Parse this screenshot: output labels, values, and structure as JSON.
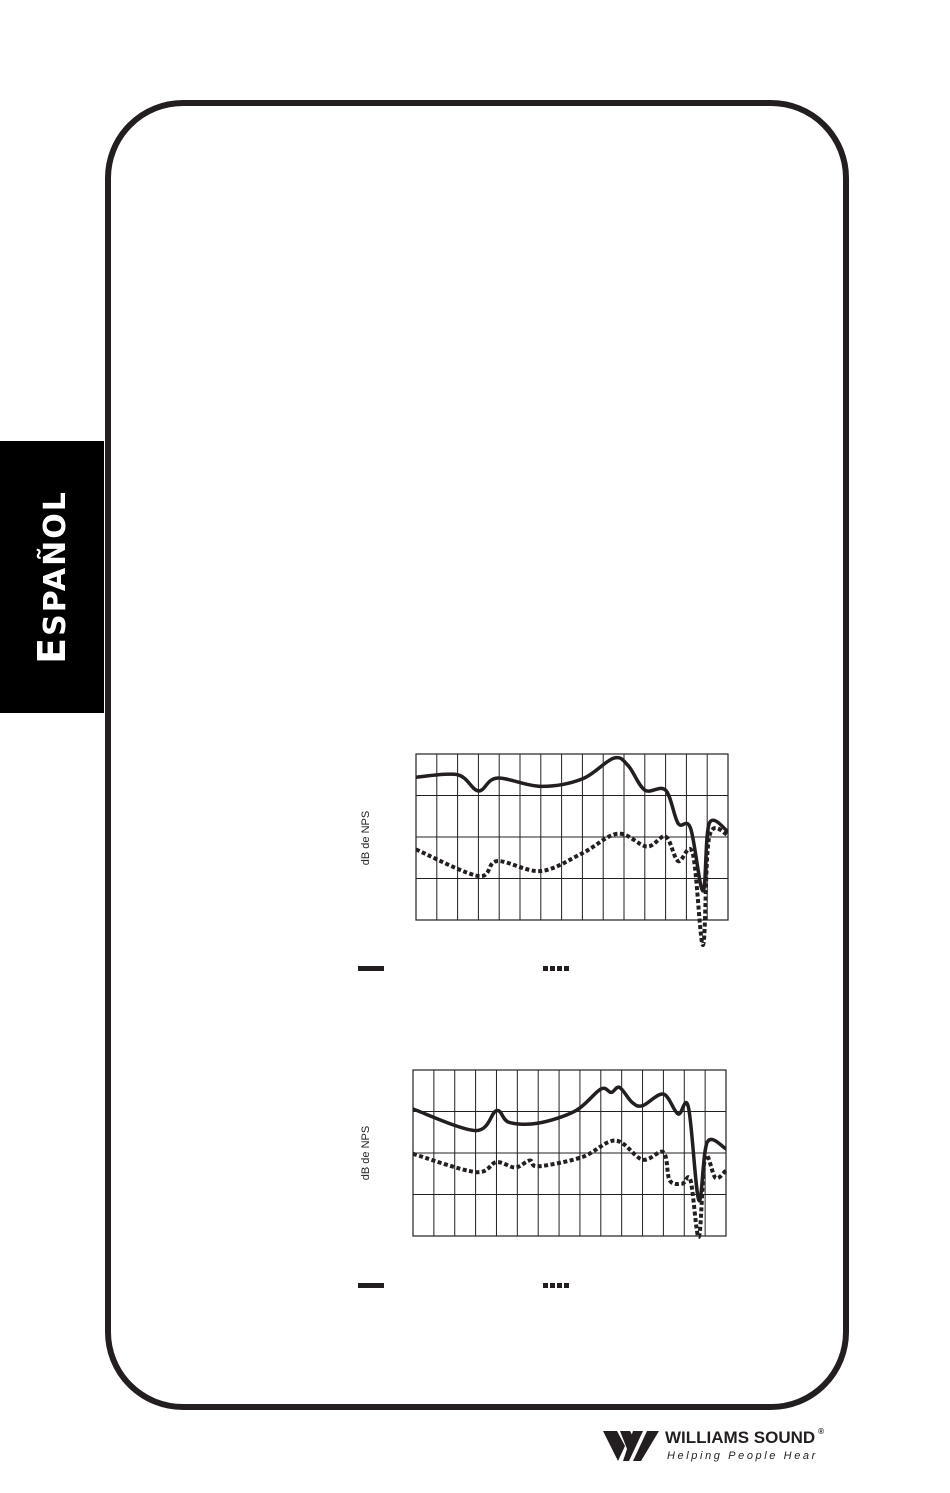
{
  "side_tab": {
    "label_first": "E",
    "label_rest": "SPAÑOL"
  },
  "logo": {
    "name": "WILLIAMS SOUND",
    "registered": "®",
    "tagline": "Helping People Hear"
  },
  "colors": {
    "ink": "#231f20",
    "tab_bg": "#000000"
  },
  "chart_data": [
    {
      "type": "line",
      "ylabel": "dB de NPS",
      "grid": true,
      "grid_columns": 15,
      "grid_rows": 4,
      "xlim": [
        0,
        15
      ],
      "ylim": [
        0,
        4
      ],
      "series": [
        {
          "style": "solid",
          "x": [
            0,
            2,
            3,
            3.9,
            6,
            8,
            9.5,
            10.2,
            11,
            12,
            12.6,
            13.2,
            13.8,
            14.1,
            15
          ],
          "y": [
            3.44,
            3.5,
            3.11,
            3.42,
            3.22,
            3.4,
            3.9,
            3.72,
            3.13,
            3.13,
            2.33,
            2.21,
            0.7,
            2.33,
            2.13
          ]
        },
        {
          "style": "dotted",
          "x": [
            0,
            3,
            3.9,
            6,
            8,
            9.7,
            11.1,
            12,
            12.6,
            13.3,
            13.8,
            14.1,
            15
          ],
          "y": [
            1.7,
            1.06,
            1.42,
            1.18,
            1.61,
            2.08,
            1.77,
            2.01,
            1.42,
            1.61,
            -0.6,
            2.01,
            2.05
          ]
        }
      ]
    },
    {
      "type": "line",
      "ylabel": "dB de NPS",
      "grid": true,
      "grid_columns": 15,
      "grid_rows": 4,
      "xlim": [
        0,
        15
      ],
      "ylim": [
        0,
        4
      ],
      "series": [
        {
          "style": "solid",
          "x": [
            0,
            3,
            4,
            4.6,
            6,
            7.8,
            9,
            9.5,
            9.9,
            10.5,
            11,
            12,
            12.7,
            13.2,
            13.7,
            14.1,
            15
          ],
          "y": [
            3.06,
            2.54,
            3.02,
            2.74,
            2.72,
            3.02,
            3.54,
            3.46,
            3.58,
            3.22,
            3.14,
            3.42,
            2.94,
            3.1,
            0.86,
            2.26,
            2.1
          ]
        },
        {
          "style": "dotted",
          "x": [
            0,
            3,
            4,
            4.9,
            5.6,
            6,
            8.1,
            9.7,
            11,
            12,
            12.3,
            12.9,
            13.3,
            13.7,
            14,
            14.5,
            15
          ],
          "y": [
            1.98,
            1.54,
            1.78,
            1.65,
            1.82,
            1.68,
            1.9,
            2.3,
            1.84,
            2.02,
            1.34,
            1.26,
            1.34,
            -0.02,
            1.9,
            1.4,
            1.58
          ]
        }
      ]
    }
  ]
}
